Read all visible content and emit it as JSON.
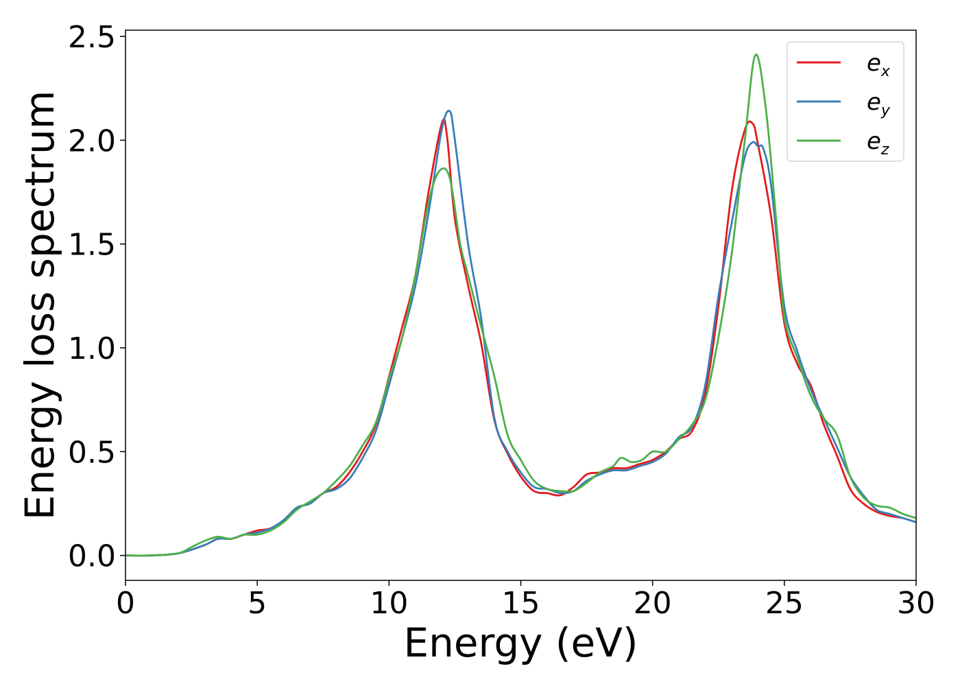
{
  "chart_data": {
    "type": "line",
    "xlabel": "Energy (eV)",
    "ylabel": "Energy loss spectrum",
    "xlim": [
      0,
      30
    ],
    "ylim": [
      -0.12,
      2.53
    ],
    "xticks": [
      0,
      5,
      10,
      15,
      20,
      25,
      30
    ],
    "xtick_labels": [
      "0",
      "5",
      "10",
      "15",
      "20",
      "25",
      "30"
    ],
    "yticks": [
      0.0,
      0.5,
      1.0,
      1.5,
      2.0,
      2.5
    ],
    "ytick_labels": [
      "0.0",
      "0.5",
      "1.0",
      "1.5",
      "2.0",
      "2.5"
    ],
    "grid": false,
    "legend_position": "top-right",
    "series": [
      {
        "name": "e_x",
        "label_main": "e",
        "label_sub": "x",
        "color": "#e41a1c",
        "x": [
          0,
          1,
          2,
          3,
          3.5,
          4,
          4.5,
          5,
          5.5,
          6,
          6.5,
          7,
          7.5,
          8,
          8.5,
          9,
          9.5,
          10,
          10.5,
          11,
          11.5,
          12,
          12.2,
          12.5,
          13,
          13.5,
          14,
          14.5,
          15,
          15.5,
          16,
          16.5,
          17,
          17.5,
          18,
          18.5,
          19,
          19.5,
          20,
          20.5,
          21,
          21.5,
          22,
          22.5,
          23,
          23.5,
          23.8,
          24,
          24.5,
          25,
          25.5,
          26,
          26.5,
          27,
          27.5,
          28,
          28.5,
          29,
          29.5,
          30
        ],
        "y": [
          0,
          0,
          0.01,
          0.05,
          0.08,
          0.08,
          0.1,
          0.12,
          0.13,
          0.17,
          0.23,
          0.25,
          0.3,
          0.33,
          0.4,
          0.5,
          0.63,
          0.86,
          1.1,
          1.35,
          1.75,
          2.08,
          2.02,
          1.62,
          1.3,
          1.02,
          0.65,
          0.49,
          0.38,
          0.31,
          0.3,
          0.29,
          0.33,
          0.39,
          0.4,
          0.42,
          0.42,
          0.44,
          0.46,
          0.5,
          0.56,
          0.6,
          0.78,
          1.2,
          1.75,
          2.05,
          2.08,
          1.98,
          1.63,
          1.12,
          0.92,
          0.82,
          0.63,
          0.48,
          0.32,
          0.25,
          0.21,
          0.19,
          0.18,
          0.16
        ]
      },
      {
        "name": "e_y",
        "label_main": "e",
        "label_sub": "y",
        "color": "#377eb8",
        "x": [
          0,
          1,
          2,
          3,
          3.5,
          4,
          4.5,
          5,
          5.5,
          6,
          6.5,
          7,
          7.5,
          8,
          8.5,
          9,
          9.5,
          10,
          10.5,
          11,
          11.5,
          12,
          12.3,
          12.5,
          13,
          13.5,
          14,
          14.5,
          15,
          15.5,
          16,
          16.5,
          17,
          17.5,
          18,
          18.5,
          19,
          19.5,
          20,
          20.5,
          21,
          21.5,
          22,
          22.5,
          23,
          23.5,
          23.8,
          24,
          24.2,
          24.5,
          25,
          25.5,
          26,
          26.5,
          27,
          27.5,
          28,
          28.5,
          29,
          29.5,
          30
        ],
        "y": [
          0,
          0,
          0.01,
          0.05,
          0.08,
          0.08,
          0.1,
          0.11,
          0.13,
          0.17,
          0.23,
          0.25,
          0.3,
          0.32,
          0.37,
          0.47,
          0.6,
          0.82,
          1.05,
          1.3,
          1.65,
          2.05,
          2.14,
          2.0,
          1.5,
          1.14,
          0.66,
          0.5,
          0.4,
          0.33,
          0.32,
          0.3,
          0.31,
          0.36,
          0.39,
          0.41,
          0.41,
          0.43,
          0.45,
          0.49,
          0.57,
          0.62,
          0.82,
          1.25,
          1.6,
          1.92,
          1.99,
          1.97,
          1.96,
          1.78,
          1.2,
          0.98,
          0.8,
          0.66,
          0.52,
          0.38,
          0.29,
          0.22,
          0.2,
          0.18,
          0.16
        ]
      },
      {
        "name": "e_z",
        "label_main": "e",
        "label_sub": "z",
        "color": "#4daf4a",
        "x": [
          0,
          1,
          2,
          2.5,
          3,
          3.5,
          4,
          4.5,
          5,
          5.5,
          6,
          6.5,
          7,
          7.5,
          8,
          8.5,
          9,
          9.5,
          10,
          10.5,
          11,
          11.5,
          11.9,
          12.3,
          12.7,
          13,
          13.5,
          14,
          14.5,
          15,
          15.5,
          16,
          16.5,
          17,
          17.5,
          18,
          18.5,
          18.8,
          19.2,
          19.6,
          20,
          20.5,
          21,
          21.5,
          22,
          22.5,
          23,
          23.5,
          23.9,
          24.3,
          24.7,
          25,
          25.5,
          26,
          26.5,
          27,
          27.5,
          28,
          28.5,
          29,
          29.5,
          30
        ],
        "y": [
          0,
          0,
          0.01,
          0.04,
          0.07,
          0.09,
          0.08,
          0.1,
          0.1,
          0.12,
          0.16,
          0.22,
          0.26,
          0.3,
          0.36,
          0.43,
          0.53,
          0.64,
          0.85,
          1.05,
          1.35,
          1.7,
          1.85,
          1.82,
          1.5,
          1.35,
          1.1,
          0.86,
          0.58,
          0.46,
          0.36,
          0.32,
          0.31,
          0.31,
          0.35,
          0.4,
          0.43,
          0.47,
          0.45,
          0.46,
          0.5,
          0.5,
          0.56,
          0.63,
          0.75,
          1.05,
          1.45,
          2.0,
          2.41,
          2.15,
          1.6,
          1.15,
          0.95,
          0.77,
          0.66,
          0.58,
          0.38,
          0.28,
          0.24,
          0.23,
          0.2,
          0.18
        ]
      }
    ]
  }
}
